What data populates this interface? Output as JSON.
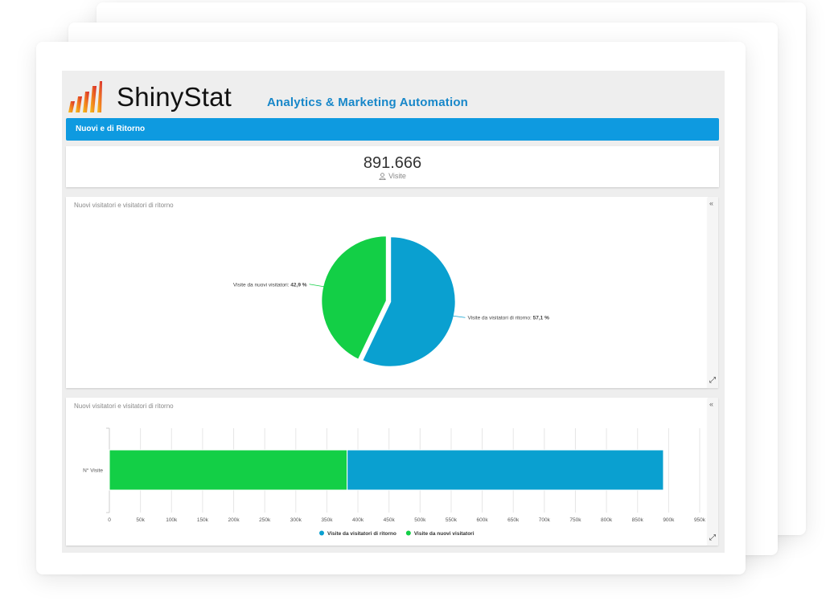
{
  "header": {
    "brand": "ShinyStat",
    "tagline": "Analytics & Marketing Automation"
  },
  "section": {
    "title": "Nuovi e di Ritorno"
  },
  "kpi": {
    "value": "891.666",
    "label": "Visite",
    "icon": "user-icon"
  },
  "pie_panel": {
    "title": "Nuovi visitatori e visitatori di ritorno"
  },
  "bar_panel": {
    "title": "Nuovi visitatori e visitatori di ritorno"
  },
  "chart_data": [
    {
      "type": "pie",
      "slices": [
        {
          "label": "Visite da visitatori di ritorno",
          "value": 57.1,
          "display": "57,1 %",
          "color": "#0aa0d0"
        },
        {
          "label": "Visite da nuovi visitatori",
          "value": 42.9,
          "display": "42,9 %",
          "color": "#13cf46"
        }
      ]
    },
    {
      "type": "bar",
      "orientation": "horizontal",
      "stacked": true,
      "categories": [
        "N° Visite"
      ],
      "series": [
        {
          "name": "Visite da visitatori di ritorno",
          "values": [
            509000
          ],
          "color": "#0aa0d0"
        },
        {
          "name": "Visite da nuovi visitatori",
          "values": [
            382666
          ],
          "color": "#13cf46"
        }
      ],
      "xlim": [
        0,
        950000
      ],
      "xticks": [
        0,
        50000,
        100000,
        150000,
        200000,
        250000,
        300000,
        350000,
        400000,
        450000,
        500000,
        550000,
        600000,
        650000,
        700000,
        750000,
        800000,
        850000,
        900000,
        950000
      ],
      "xtick_labels": [
        "0",
        "50k",
        "100k",
        "150k",
        "200k",
        "250k",
        "300k",
        "350k",
        "400k",
        "450k",
        "500k",
        "550k",
        "600k",
        "650k",
        "700k",
        "750k",
        "800k",
        "850k",
        "900k",
        "950k"
      ],
      "legend": "bottom-center",
      "grid": true
    }
  ]
}
